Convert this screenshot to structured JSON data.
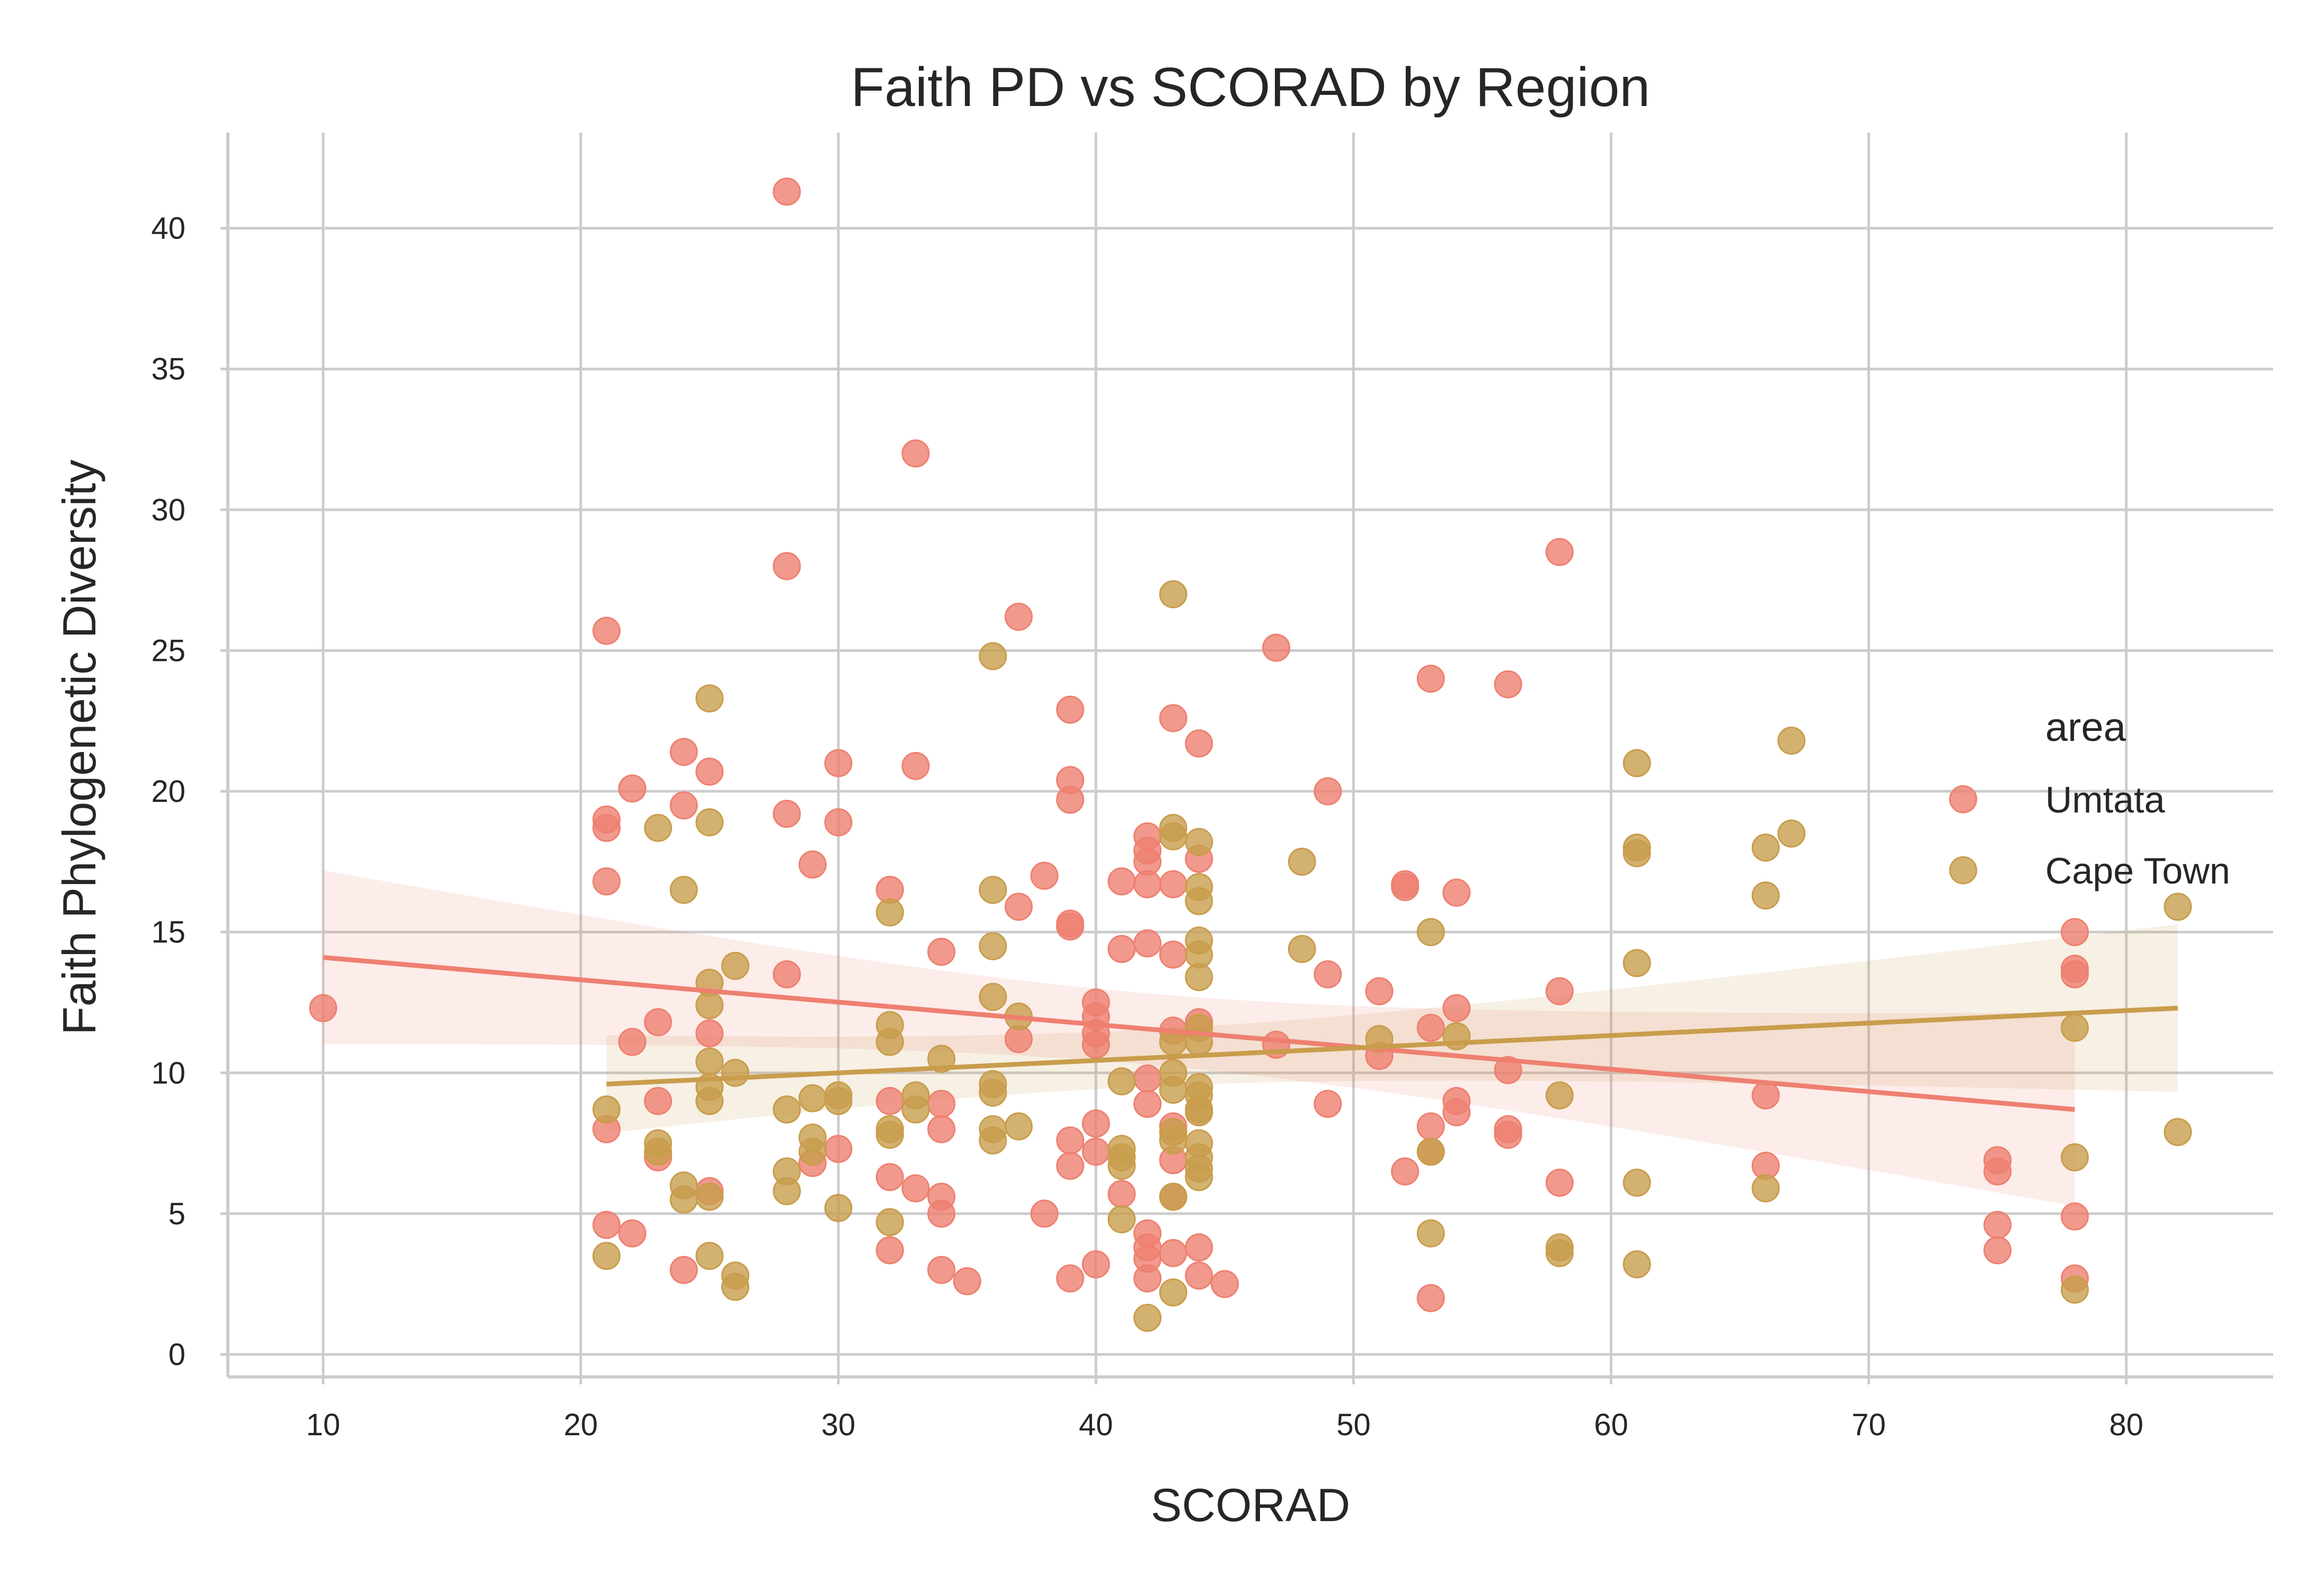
{
  "chart_data": {
    "type": "scatter",
    "title": "Faith PD vs SCORAD by Region",
    "xlabel": "SCORAD",
    "ylabel": "Faith Phylogenetic Diversity",
    "xlim": [
      6.3,
      85.7
    ],
    "ylim": [
      -0.8,
      43.4
    ],
    "xticks": [
      10,
      20,
      30,
      40,
      50,
      60,
      70,
      80
    ],
    "yticks": [
      0,
      5,
      10,
      15,
      20,
      25,
      30,
      35,
      40
    ],
    "grid": true,
    "legend": {
      "title": "area",
      "position": "right"
    },
    "series": [
      {
        "name": "Umtata",
        "color": "#ee8070",
        "points": [
          [
            10,
            12.3
          ],
          [
            21,
            25.7
          ],
          [
            21,
            19.0
          ],
          [
            21,
            18.7
          ],
          [
            21,
            16.8
          ],
          [
            21,
            8.0
          ],
          [
            21,
            4.6
          ],
          [
            22,
            20.1
          ],
          [
            22,
            11.1
          ],
          [
            22,
            4.3
          ],
          [
            23,
            11.8
          ],
          [
            23,
            9.0
          ],
          [
            23,
            7.0
          ],
          [
            24,
            21.4
          ],
          [
            24,
            19.5
          ],
          [
            24,
            3.0
          ],
          [
            25,
            20.7
          ],
          [
            25,
            11.4
          ],
          [
            25,
            5.8
          ],
          [
            28,
            41.3
          ],
          [
            28,
            28.0
          ],
          [
            28,
            19.2
          ],
          [
            28,
            13.5
          ],
          [
            29,
            17.4
          ],
          [
            29,
            6.8
          ],
          [
            30,
            21.0
          ],
          [
            30,
            18.9
          ],
          [
            30,
            7.3
          ],
          [
            32,
            16.5
          ],
          [
            32,
            9.0
          ],
          [
            32,
            6.3
          ],
          [
            32,
            3.7
          ],
          [
            33,
            32.0
          ],
          [
            33,
            20.9
          ],
          [
            33,
            5.9
          ],
          [
            34,
            14.3
          ],
          [
            34,
            8.9
          ],
          [
            34,
            8.0
          ],
          [
            34,
            5.6
          ],
          [
            34,
            5.0
          ],
          [
            34,
            3.0
          ],
          [
            35,
            2.6
          ],
          [
            37,
            26.2
          ],
          [
            37,
            15.9
          ],
          [
            37,
            11.2
          ],
          [
            38,
            17.0
          ],
          [
            38,
            5.0
          ],
          [
            39,
            22.9
          ],
          [
            39,
            20.4
          ],
          [
            39,
            19.7
          ],
          [
            39,
            15.3
          ],
          [
            39,
            15.2
          ],
          [
            39,
            7.6
          ],
          [
            39,
            6.7
          ],
          [
            39,
            2.7
          ],
          [
            40,
            12.5
          ],
          [
            40,
            12.0
          ],
          [
            40,
            11.4
          ],
          [
            40,
            11.0
          ],
          [
            40,
            8.2
          ],
          [
            40,
            7.2
          ],
          [
            40,
            3.2
          ],
          [
            41,
            16.8
          ],
          [
            41,
            14.4
          ],
          [
            41,
            5.7
          ],
          [
            42,
            18.4
          ],
          [
            42,
            17.9
          ],
          [
            42,
            17.5
          ],
          [
            42,
            16.7
          ],
          [
            42,
            14.6
          ],
          [
            42,
            9.8
          ],
          [
            42,
            8.9
          ],
          [
            42,
            4.3
          ],
          [
            42,
            3.8
          ],
          [
            42,
            3.4
          ],
          [
            42,
            2.7
          ],
          [
            43,
            22.6
          ],
          [
            43,
            16.7
          ],
          [
            43,
            14.2
          ],
          [
            43,
            11.5
          ],
          [
            43,
            8.1
          ],
          [
            43,
            6.9
          ],
          [
            43,
            5.6
          ],
          [
            43,
            3.6
          ],
          [
            44,
            21.7
          ],
          [
            44,
            17.6
          ],
          [
            44,
            11.8
          ],
          [
            44,
            3.8
          ],
          [
            44,
            2.8
          ],
          [
            45,
            2.5
          ],
          [
            47,
            25.1
          ],
          [
            47,
            11.0
          ],
          [
            49,
            20.0
          ],
          [
            49,
            13.5
          ],
          [
            49,
            8.9
          ],
          [
            51,
            12.9
          ],
          [
            51,
            10.6
          ],
          [
            52,
            16.7
          ],
          [
            52,
            16.6
          ],
          [
            52,
            6.5
          ],
          [
            53,
            24.0
          ],
          [
            53,
            11.6
          ],
          [
            53,
            8.1
          ],
          [
            53,
            7.2
          ],
          [
            53,
            2.0
          ],
          [
            54,
            16.4
          ],
          [
            54,
            12.3
          ],
          [
            54,
            9.0
          ],
          [
            54,
            8.6
          ],
          [
            56,
            23.8
          ],
          [
            56,
            10.1
          ],
          [
            56,
            8.0
          ],
          [
            56,
            7.8
          ],
          [
            58,
            28.5
          ],
          [
            58,
            12.9
          ],
          [
            58,
            6.1
          ],
          [
            66,
            9.2
          ],
          [
            66,
            6.7
          ],
          [
            75,
            6.9
          ],
          [
            75,
            6.5
          ],
          [
            75,
            4.6
          ],
          [
            75,
            3.7
          ],
          [
            78,
            15.0
          ],
          [
            78,
            13.7
          ],
          [
            78,
            13.5
          ],
          [
            78,
            4.9
          ],
          [
            78,
            2.7
          ]
        ],
        "regression": {
          "x": [
            10,
            78
          ],
          "y": [
            14.1,
            8.7
          ]
        }
      },
      {
        "name": "Cape Town",
        "color": "#c89d4c",
        "points": [
          [
            21,
            8.7
          ],
          [
            21,
            3.5
          ],
          [
            23,
            18.7
          ],
          [
            23,
            7.5
          ],
          [
            23,
            7.2
          ],
          [
            24,
            16.5
          ],
          [
            24,
            6.0
          ],
          [
            24,
            5.5
          ],
          [
            25,
            23.3
          ],
          [
            25,
            18.9
          ],
          [
            25,
            13.2
          ],
          [
            25,
            12.4
          ],
          [
            25,
            10.4
          ],
          [
            25,
            9.5
          ],
          [
            25,
            9.0
          ],
          [
            25,
            5.6
          ],
          [
            25,
            3.5
          ],
          [
            26,
            13.8
          ],
          [
            26,
            10.0
          ],
          [
            26,
            2.8
          ],
          [
            26,
            2.4
          ],
          [
            28,
            8.7
          ],
          [
            28,
            6.5
          ],
          [
            28,
            5.8
          ],
          [
            29,
            9.1
          ],
          [
            29,
            7.7
          ],
          [
            29,
            7.2
          ],
          [
            30,
            9.2
          ],
          [
            30,
            9.0
          ],
          [
            30,
            5.2
          ],
          [
            32,
            15.7
          ],
          [
            32,
            11.7
          ],
          [
            32,
            11.1
          ],
          [
            32,
            8.0
          ],
          [
            32,
            7.8
          ],
          [
            32,
            4.7
          ],
          [
            33,
            9.2
          ],
          [
            33,
            8.7
          ],
          [
            34,
            10.5
          ],
          [
            36,
            24.8
          ],
          [
            36,
            16.5
          ],
          [
            36,
            14.5
          ],
          [
            36,
            12.7
          ],
          [
            36,
            9.6
          ],
          [
            36,
            9.3
          ],
          [
            36,
            8.0
          ],
          [
            36,
            7.6
          ],
          [
            37,
            12.0
          ],
          [
            37,
            8.1
          ],
          [
            41,
            9.7
          ],
          [
            41,
            7.3
          ],
          [
            41,
            7.0
          ],
          [
            41,
            6.7
          ],
          [
            41,
            4.8
          ],
          [
            42,
            1.3
          ],
          [
            43,
            27.0
          ],
          [
            43,
            18.7
          ],
          [
            43,
            18.4
          ],
          [
            43,
            11.1
          ],
          [
            43,
            10.0
          ],
          [
            43,
            9.4
          ],
          [
            43,
            7.9
          ],
          [
            43,
            7.6
          ],
          [
            43,
            5.6
          ],
          [
            43,
            2.2
          ],
          [
            44,
            18.2
          ],
          [
            44,
            16.6
          ],
          [
            44,
            16.1
          ],
          [
            44,
            14.7
          ],
          [
            44,
            14.2
          ],
          [
            44,
            13.4
          ],
          [
            44,
            11.6
          ],
          [
            44,
            11.1
          ],
          [
            44,
            9.5
          ],
          [
            44,
            9.2
          ],
          [
            44,
            8.7
          ],
          [
            44,
            8.6
          ],
          [
            44,
            7.5
          ],
          [
            44,
            7.0
          ],
          [
            44,
            6.6
          ],
          [
            44,
            6.3
          ],
          [
            48,
            17.5
          ],
          [
            48,
            14.4
          ],
          [
            51,
            11.2
          ],
          [
            53,
            15.0
          ],
          [
            53,
            7.2
          ],
          [
            53,
            4.3
          ],
          [
            54,
            11.3
          ],
          [
            58,
            9.2
          ],
          [
            58,
            3.8
          ],
          [
            58,
            3.6
          ],
          [
            61,
            21.0
          ],
          [
            61,
            18.0
          ],
          [
            61,
            17.8
          ],
          [
            61,
            13.9
          ],
          [
            61,
            6.1
          ],
          [
            61,
            3.2
          ],
          [
            66,
            18.0
          ],
          [
            66,
            16.3
          ],
          [
            66,
            5.9
          ],
          [
            67,
            21.8
          ],
          [
            67,
            18.5
          ],
          [
            78,
            11.6
          ],
          [
            78,
            7.0
          ],
          [
            78,
            2.3
          ],
          [
            82,
            15.9
          ],
          [
            82,
            7.9
          ]
        ],
        "regression": {
          "x": [
            21,
            82
          ],
          "y": [
            9.6,
            12.3
          ]
        }
      }
    ]
  }
}
